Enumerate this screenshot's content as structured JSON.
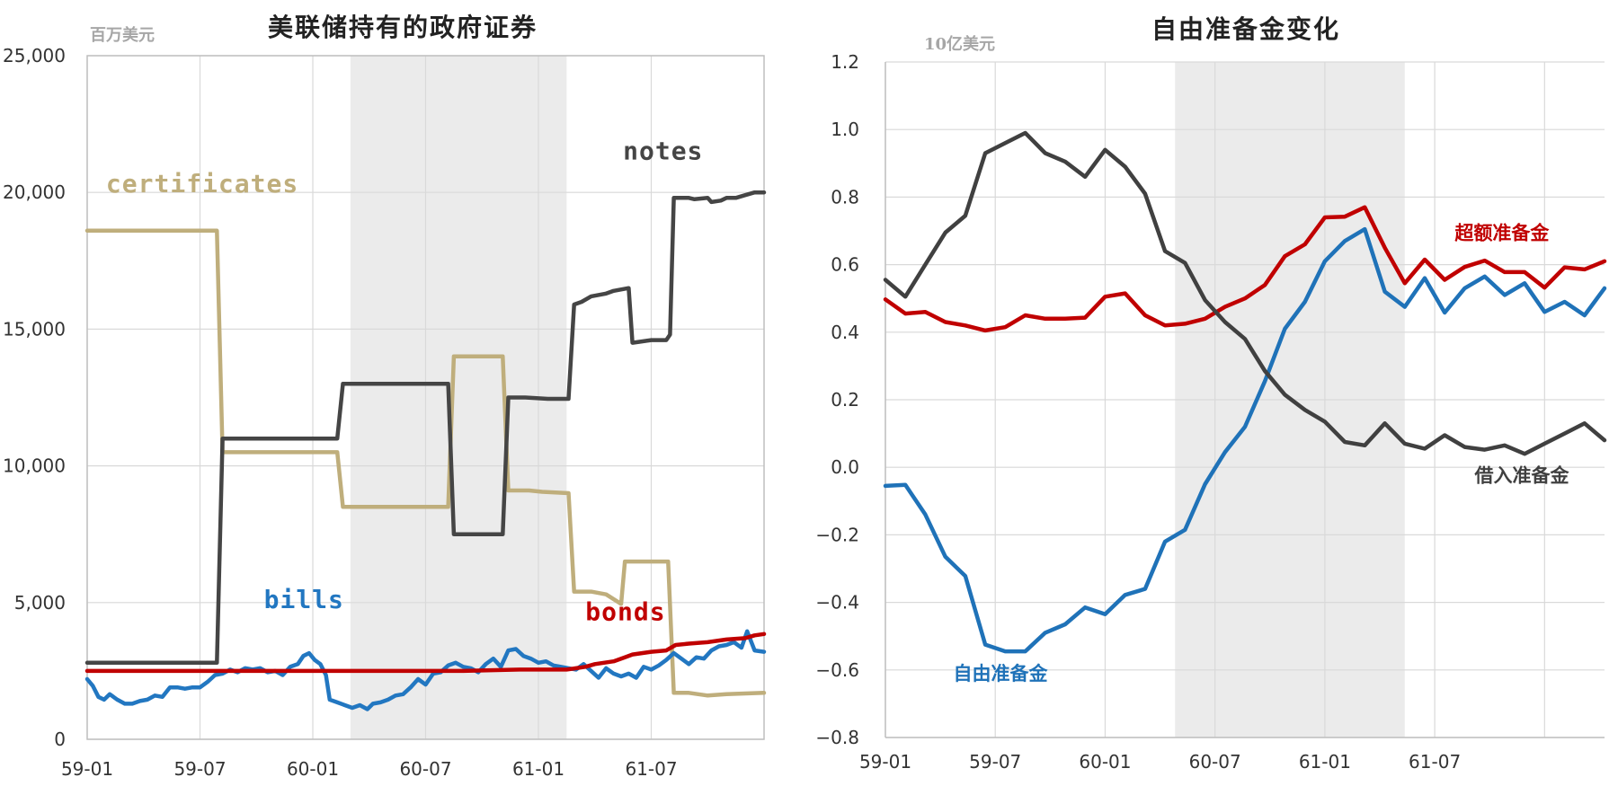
{
  "chart_data": [
    {
      "type": "line",
      "title": "美联储持有的政府证券",
      "unit": "百万美元",
      "x_ticks": [
        "59-01",
        "59-07",
        "60-01",
        "60-07",
        "61-01",
        "61-07"
      ],
      "y_ticks": [
        "0",
        "5,000",
        "10,000",
        "15,000",
        "20,000",
        "25,000"
      ],
      "ylim": [
        0,
        25000
      ],
      "xlim": [
        0,
        36
      ],
      "shaded_range": [
        14,
        25.5
      ],
      "grid": true,
      "series": [
        {
          "name": "certificates",
          "color": "#bfae7c",
          "label_at": [
            1,
            20000
          ],
          "points": [
            [
              0,
              18600
            ],
            [
              6.9,
              18600
            ],
            [
              7.2,
              10500
            ],
            [
              13.3,
              10500
            ],
            [
              13.6,
              8500
            ],
            [
              19.2,
              8500
            ],
            [
              19.5,
              14000
            ],
            [
              22.1,
              14000
            ],
            [
              22.4,
              9100
            ],
            [
              23.5,
              9100
            ],
            [
              24.2,
              9050
            ],
            [
              25.6,
              9000
            ],
            [
              25.9,
              5400
            ],
            [
              26.8,
              5400
            ],
            [
              27.6,
              5300
            ],
            [
              28.4,
              4950
            ],
            [
              28.6,
              6500
            ],
            [
              30.9,
              6500
            ],
            [
              31.2,
              1700
            ],
            [
              32,
              1700
            ],
            [
              33,
              1600
            ],
            [
              34,
              1650
            ],
            [
              36,
              1700
            ]
          ]
        },
        {
          "name": "notes",
          "color": "#454545",
          "label_at": [
            28.5,
            21200
          ],
          "points": [
            [
              0,
              2800
            ],
            [
              6.9,
              2800
            ],
            [
              7.2,
              11000
            ],
            [
              13.3,
              11000
            ],
            [
              13.6,
              13000
            ],
            [
              19.2,
              13000
            ],
            [
              19.5,
              7500
            ],
            [
              22.1,
              7500
            ],
            [
              22.4,
              12500
            ],
            [
              23.3,
              12500
            ],
            [
              24.5,
              12450
            ],
            [
              25.6,
              12450
            ],
            [
              25.9,
              15900
            ],
            [
              26.3,
              16000
            ],
            [
              26.8,
              16200
            ],
            [
              27.6,
              16300
            ],
            [
              28,
              16400
            ],
            [
              28.8,
              16500
            ],
            [
              29,
              14500
            ],
            [
              29.5,
              14550
            ],
            [
              30,
              14600
            ],
            [
              30.8,
              14600
            ],
            [
              31,
              14800
            ],
            [
              31.2,
              19800
            ],
            [
              32,
              19800
            ],
            [
              32.3,
              19750
            ],
            [
              33,
              19800
            ],
            [
              33.2,
              19650
            ],
            [
              33.7,
              19700
            ],
            [
              34,
              19800
            ],
            [
              34.5,
              19800
            ],
            [
              35,
              19900
            ],
            [
              35.5,
              20000
            ],
            [
              36,
              20000
            ]
          ]
        },
        {
          "name": "bills",
          "color": "#2277c1",
          "label_at": [
            9.4,
            4800
          ],
          "points": [
            [
              0,
              2200
            ],
            [
              0.3,
              1950
            ],
            [
              0.6,
              1550
            ],
            [
              0.9,
              1450
            ],
            [
              1.2,
              1650
            ],
            [
              1.6,
              1450
            ],
            [
              2,
              1300
            ],
            [
              2.4,
              1300
            ],
            [
              2.8,
              1400
            ],
            [
              3.2,
              1450
            ],
            [
              3.6,
              1600
            ],
            [
              4,
              1550
            ],
            [
              4.4,
              1900
            ],
            [
              4.8,
              1900
            ],
            [
              5.2,
              1850
            ],
            [
              5.6,
              1900
            ],
            [
              6,
              1900
            ],
            [
              6.4,
              2100
            ],
            [
              6.8,
              2350
            ],
            [
              7.2,
              2400
            ],
            [
              7.6,
              2550
            ],
            [
              8,
              2450
            ],
            [
              8.4,
              2600
            ],
            [
              8.8,
              2550
            ],
            [
              9.2,
              2600
            ],
            [
              9.6,
              2450
            ],
            [
              10,
              2500
            ],
            [
              10.4,
              2350
            ],
            [
              10.8,
              2650
            ],
            [
              11.2,
              2750
            ],
            [
              11.5,
              3050
            ],
            [
              11.8,
              3150
            ],
            [
              12.1,
              2900
            ],
            [
              12.4,
              2750
            ],
            [
              12.7,
              2350
            ],
            [
              12.9,
              1450
            ],
            [
              13.3,
              1350
            ],
            [
              13.7,
              1250
            ],
            [
              14.1,
              1150
            ],
            [
              14.5,
              1250
            ],
            [
              14.9,
              1100
            ],
            [
              15.2,
              1300
            ],
            [
              15.6,
              1350
            ],
            [
              16,
              1450
            ],
            [
              16.4,
              1600
            ],
            [
              16.8,
              1650
            ],
            [
              17.2,
              1900
            ],
            [
              17.6,
              2200
            ],
            [
              18,
              2000
            ],
            [
              18.4,
              2400
            ],
            [
              18.8,
              2450
            ],
            [
              19.2,
              2700
            ],
            [
              19.6,
              2800
            ],
            [
              20,
              2650
            ],
            [
              20.4,
              2600
            ],
            [
              20.8,
              2450
            ],
            [
              21.2,
              2750
            ],
            [
              21.6,
              2950
            ],
            [
              22,
              2650
            ],
            [
              22.4,
              3250
            ],
            [
              22.8,
              3300
            ],
            [
              23.2,
              3050
            ],
            [
              23.6,
              2950
            ],
            [
              24,
              2800
            ],
            [
              24.4,
              2850
            ],
            [
              24.8,
              2700
            ],
            [
              25.2,
              2650
            ],
            [
              25.6,
              2600
            ],
            [
              26,
              2550
            ],
            [
              26.4,
              2750
            ],
            [
              26.8,
              2500
            ],
            [
              27.2,
              2250
            ],
            [
              27.6,
              2600
            ],
            [
              28,
              2400
            ],
            [
              28.4,
              2300
            ],
            [
              28.8,
              2400
            ],
            [
              29.2,
              2250
            ],
            [
              29.6,
              2650
            ],
            [
              30,
              2550
            ],
            [
              30.4,
              2700
            ],
            [
              30.8,
              2900
            ],
            [
              31.2,
              3150
            ],
            [
              31.6,
              2950
            ],
            [
              32,
              2750
            ],
            [
              32.4,
              3000
            ],
            [
              32.8,
              2950
            ],
            [
              33.2,
              3250
            ],
            [
              33.6,
              3400
            ],
            [
              34,
              3450
            ],
            [
              34.4,
              3550
            ],
            [
              34.8,
              3350
            ],
            [
              35.1,
              3950
            ],
            [
              35.5,
              3250
            ],
            [
              36,
              3200
            ]
          ]
        },
        {
          "name": "bonds",
          "color": "#c00000",
          "label_at": [
            26.5,
            4350
          ],
          "points": [
            [
              0,
              2500
            ],
            [
              10,
              2500
            ],
            [
              20,
              2500
            ],
            [
              23,
              2550
            ],
            [
              25.5,
              2550
            ],
            [
              26,
              2600
            ],
            [
              26.5,
              2650
            ],
            [
              27,
              2750
            ],
            [
              28,
              2850
            ],
            [
              28.6,
              3000
            ],
            [
              29,
              3100
            ],
            [
              29.5,
              3150
            ],
            [
              30,
              3200
            ],
            [
              30.8,
              3250
            ],
            [
              31.3,
              3450
            ],
            [
              32,
              3500
            ],
            [
              33,
              3550
            ],
            [
              34,
              3650
            ],
            [
              35,
              3700
            ],
            [
              35.5,
              3800
            ],
            [
              36,
              3850
            ]
          ]
        }
      ]
    },
    {
      "type": "line",
      "title": "自由准备金变化",
      "unit": "10亿美元",
      "x_ticks": [
        "59-01",
        "59-07",
        "60-01",
        "60-07",
        "61-01",
        "61-07"
      ],
      "y_ticks": [
        "1.2",
        "1.0",
        "0.8",
        "0.6",
        "0.4",
        "0.2",
        "0.0",
        "−0.2",
        "−0.4",
        "−0.6",
        "−0.8"
      ],
      "ylim": [
        -0.8,
        1.2
      ],
      "xlim": [
        0,
        36
      ],
      "shaded_range": [
        14.5,
        26
      ],
      "grid": true,
      "series": [
        {
          "name": "超额准备金",
          "color": "#c00000",
          "label_at": [
            28.5,
            0.675
          ],
          "values": [
            0.497,
            0.455,
            0.46,
            0.43,
            0.42,
            0.405,
            0.415,
            0.45,
            0.44,
            0.44,
            0.443,
            0.505,
            0.515,
            0.45,
            0.42,
            0.425,
            0.44,
            0.475,
            0.5,
            0.54,
            0.625,
            0.66,
            0.74,
            0.742,
            0.77,
            0.65,
            0.545,
            0.615,
            0.555,
            0.593,
            0.612,
            0.578,
            0.578,
            0.532,
            0.592,
            0.586,
            0.61
          ]
        },
        {
          "name": "自由准备金",
          "color": "#1f72b8",
          "label_at": [
            3.4,
            -0.63
          ],
          "values": [
            -0.055,
            -0.052,
            -0.14,
            -0.265,
            -0.322,
            -0.525,
            -0.545,
            -0.545,
            -0.49,
            -0.465,
            -0.415,
            -0.435,
            -0.378,
            -0.36,
            -0.22,
            -0.185,
            -0.05,
            0.045,
            0.12,
            0.255,
            0.41,
            0.49,
            0.61,
            0.67,
            0.705,
            0.52,
            0.475,
            0.56,
            0.458,
            0.53,
            0.565,
            0.51,
            0.545,
            0.46,
            0.49,
            0.45,
            0.53
          ]
        },
        {
          "name": "借入准备金",
          "color": "#404040",
          "label_at": [
            29.5,
            -0.043
          ],
          "values": [
            0.555,
            0.505,
            0.6,
            0.695,
            0.745,
            0.93,
            0.96,
            0.99,
            0.93,
            0.905,
            0.86,
            0.94,
            0.89,
            0.81,
            0.64,
            0.605,
            0.495,
            0.43,
            0.38,
            0.285,
            0.215,
            0.17,
            0.135,
            0.075,
            0.065,
            0.13,
            0.07,
            0.055,
            0.095,
            0.06,
            0.052,
            0.065,
            0.04,
            0.07,
            0.1,
            0.13,
            0.08
          ]
        }
      ]
    }
  ]
}
